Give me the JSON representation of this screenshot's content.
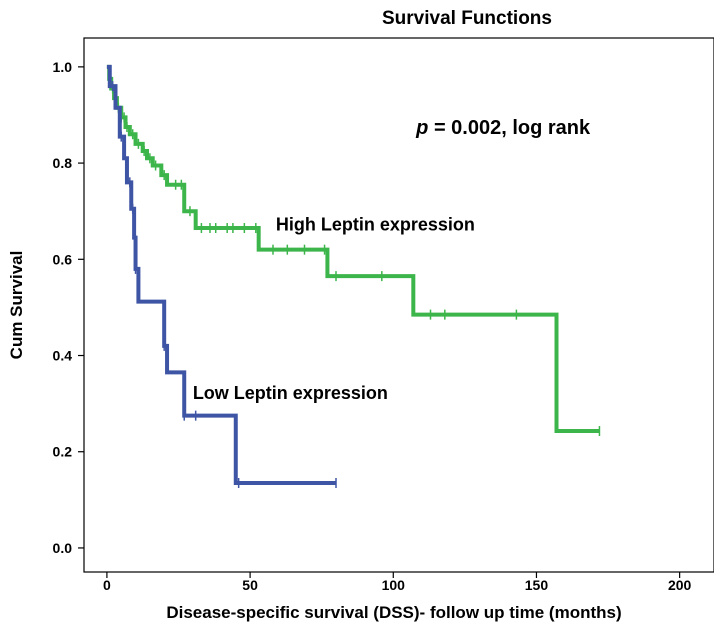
{
  "chart_data": {
    "type": "line",
    "subtype": "kaplan-meier step",
    "title": "Survival Functions",
    "xlabel": "Disease-specific survival (DSS)- follow up time (months)",
    "ylabel": "Cum Survival",
    "xlim": [
      -8,
      212
    ],
    "ylim": [
      -0.05,
      1.06
    ],
    "x_ticks": [
      0,
      50,
      100,
      150,
      200
    ],
    "x_tick_labels": [
      "0",
      "50",
      "100",
      "150",
      "200"
    ],
    "y_ticks": [
      0.0,
      0.2,
      0.4,
      0.6,
      0.8,
      1.0
    ],
    "y_tick_labels": [
      "0.0",
      "0.2",
      "0.4",
      "0.6",
      "0.8",
      "1.0"
    ],
    "grid": false,
    "series": [
      {
        "name": "High Leptin expression",
        "color": "#3cb54a",
        "steps": [
          [
            0,
            1.0
          ],
          [
            0.8,
            0.975
          ],
          [
            1.5,
            0.955
          ],
          [
            2.5,
            0.935
          ],
          [
            3.5,
            0.915
          ],
          [
            5,
            0.895
          ],
          [
            6.5,
            0.875
          ],
          [
            8,
            0.86
          ],
          [
            10,
            0.84
          ],
          [
            12.5,
            0.825
          ],
          [
            14,
            0.81
          ],
          [
            16,
            0.795
          ],
          [
            19,
            0.775
          ],
          [
            21,
            0.755
          ],
          [
            27,
            0.7
          ],
          [
            31,
            0.665
          ],
          [
            53,
            0.62
          ],
          [
            77,
            0.565
          ],
          [
            107,
            0.485
          ],
          [
            157,
            0.243
          ],
          [
            172,
            0.243
          ]
        ],
        "censored_x": [
          1,
          2,
          3,
          4,
          5,
          6,
          7,
          9,
          11,
          13,
          15,
          17,
          20,
          24,
          26,
          29,
          33,
          36,
          38,
          42,
          44,
          48,
          52,
          58,
          63,
          69,
          76,
          80,
          96,
          113,
          118,
          143,
          172
        ]
      },
      {
        "name": "Low Leptin expression",
        "color": "#3e55a5",
        "steps": [
          [
            0,
            1.0
          ],
          [
            1,
            0.96
          ],
          [
            3,
            0.915
          ],
          [
            4.5,
            0.855
          ],
          [
            6,
            0.81
          ],
          [
            7,
            0.76
          ],
          [
            8.5,
            0.705
          ],
          [
            9.5,
            0.645
          ],
          [
            10,
            0.58
          ],
          [
            11,
            0.512
          ],
          [
            20,
            0.42
          ],
          [
            21,
            0.365
          ],
          [
            27,
            0.275
          ],
          [
            45,
            0.135
          ],
          [
            80,
            0.135
          ]
        ],
        "censored_x": [
          2,
          5,
          8,
          9,
          10,
          20,
          27,
          31,
          46,
          80
        ]
      }
    ],
    "annotations": [
      {
        "text": "High Leptin expression",
        "x": 59,
        "y": 0.66
      },
      {
        "text": "Low Leptin expression",
        "x": 30,
        "y": 0.31
      }
    ],
    "pvalue": {
      "symbol": "p",
      "text": " = 0.002, log rank",
      "x": 108,
      "y": 0.86
    }
  }
}
